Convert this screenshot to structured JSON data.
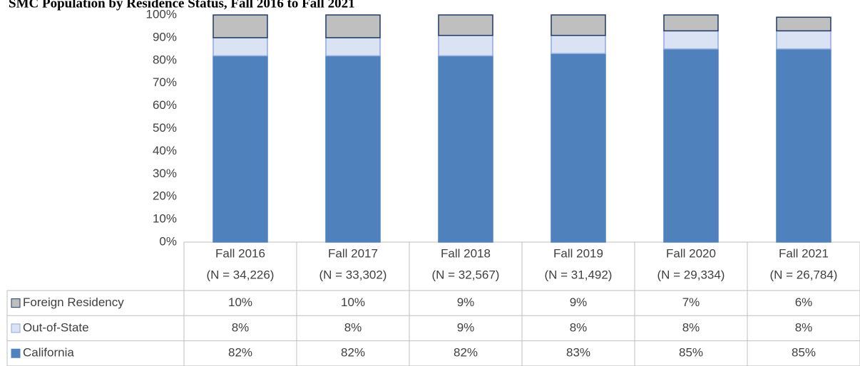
{
  "chart_data": {
    "type": "stacked_bar",
    "title": "SMC Population by Residence Status, Fall 2016 to Fall 2021",
    "categories": [
      [
        "Fall 2016",
        "(N = 34,226)"
      ],
      [
        "Fall 2017",
        "(N = 33,302)"
      ],
      [
        "Fall 2018",
        "(N = 32,567)"
      ],
      [
        "Fall 2019",
        "(N = 31,492)"
      ],
      [
        "Fall 2020",
        "(N = 29,334)"
      ],
      [
        "Fall 2021",
        "(N = 26,784)"
      ]
    ],
    "series": [
      {
        "name": "Foreign Residency",
        "color": "#bfbfbf",
        "stroke": "#1f3864",
        "values": [
          10,
          10,
          9,
          9,
          7,
          6
        ],
        "value_labels": [
          "10%",
          "10%",
          "9%",
          "9%",
          "7%",
          "6%"
        ]
      },
      {
        "name": "Out-of-State",
        "color": "#dae3f3",
        "stroke": "#8faadc",
        "values": [
          8,
          8,
          9,
          8,
          8,
          8
        ],
        "value_labels": [
          "8%",
          "8%",
          "9%",
          "8%",
          "8%",
          "8%"
        ]
      },
      {
        "name": "California",
        "color": "#4f81bd",
        "stroke": "#4f81bd",
        "values": [
          82,
          82,
          82,
          83,
          85,
          85
        ],
        "value_labels": [
          "82%",
          "82%",
          "82%",
          "83%",
          "85%",
          "85%"
        ]
      }
    ],
    "ylim": [
      0,
      100
    ],
    "yticks": [
      {
        "value": 0,
        "label": "0%"
      },
      {
        "value": 10,
        "label": "10%"
      },
      {
        "value": 20,
        "label": "20%"
      },
      {
        "value": 30,
        "label": "30%"
      },
      {
        "value": 40,
        "label": "40%"
      },
      {
        "value": 50,
        "label": "50%"
      },
      {
        "value": 60,
        "label": "60%"
      },
      {
        "value": 70,
        "label": "70%"
      },
      {
        "value": 80,
        "label": "80%"
      },
      {
        "value": 90,
        "label": "90%"
      },
      {
        "value": 100,
        "label": "100%"
      }
    ],
    "grid": false
  }
}
